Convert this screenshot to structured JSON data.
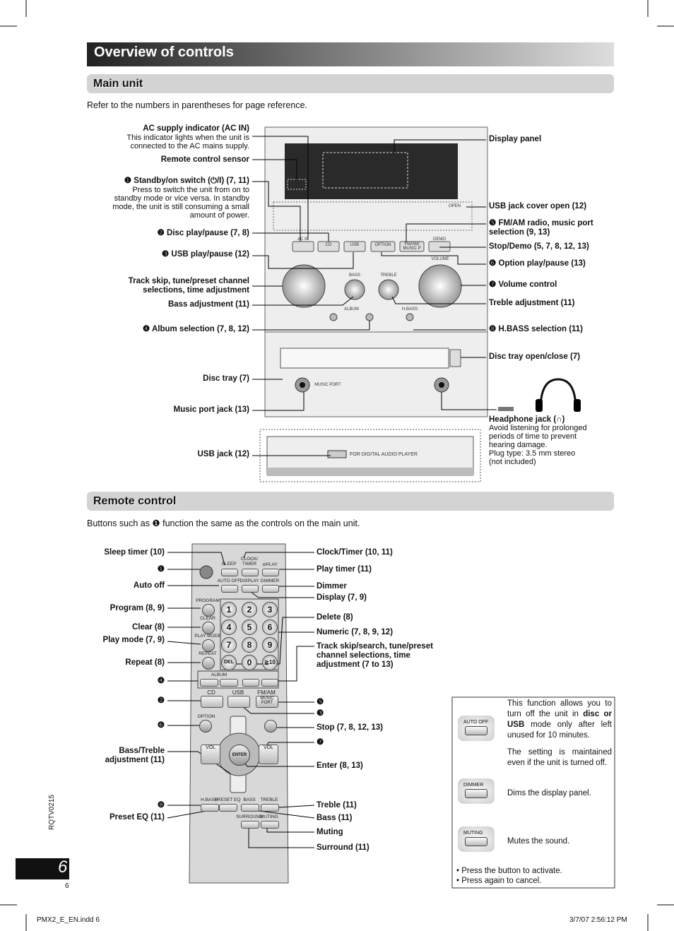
{
  "header": {
    "title": "Overview of controls"
  },
  "main_unit": {
    "heading": "Main unit",
    "intro": "Refer to the numbers in parentheses for page reference.",
    "left_labels": [
      "AC supply indicator (AC IN)",
      "This indicator lights when the unit is connected to the AC mains supply.",
      "Remote control sensor",
      "❶ Standby/on switch (⏻/I) (7, 11)",
      "Press to switch the unit from on to standby mode or vice versa. In standby mode, the unit is still consuming a small amount of power.",
      "❷ Disc play/pause (7, 8)",
      "❸ USB play/pause (12)",
      "Track skip, tune/preset channel selections, time adjustment",
      "Bass adjustment (11)",
      "❹ Album selection (7, 8, 12)",
      "Disc tray (7)",
      "Music port jack (13)",
      "USB jack (12)"
    ],
    "right_labels": [
      "Display panel",
      "USB jack cover open (12)",
      "❺ FM/AM radio, music port selection (9, 13)",
      "Stop/Demo (5, 7, 8, 12, 13)",
      "❻ Option play/pause (13)",
      "❼ Volume control",
      "Treble adjustment (11)",
      "❽ H.BASS selection (11)",
      "Disc tray open/close (7)",
      "Headphone jack (∩)",
      "Avoid listening for prolonged periods of time to prevent hearing damage.",
      "Plug type: 3.5 mm stereo (not included)"
    ],
    "device_labels": [
      "AC IN",
      "OPEN",
      "CD",
      "USB",
      "OPTION",
      "FM/AM/ MUSIC P",
      "DEMO",
      "BASS",
      "TREBLE",
      "VOLUME",
      "ALBUM",
      "H.BASS",
      "MUSIC PORT",
      "FOR DIGITAL AUDIO PLAYER"
    ]
  },
  "remote": {
    "heading": "Remote control",
    "intro": "Buttons such as ❶ function the same as the controls on the main unit.",
    "left_labels": [
      "Sleep timer (10)",
      "❶",
      "Auto off",
      "Program (8, 9)",
      "Clear (8)",
      "Play mode (7, 9)",
      "Repeat (8)",
      "❹",
      "❷",
      "❻",
      "Bass/Treble adjustment (11)",
      "❽",
      "Preset EQ (11)"
    ],
    "right_labels": [
      "Clock/Timer (10, 11)",
      "Play timer (11)",
      "Dimmer",
      "Display (7, 9)",
      "Delete (8)",
      "Numeric (7, 8, 9, 12)",
      "Track skip/search, tune/preset channel selections, time adjustment (7 to 13)",
      "❺",
      "❸",
      "Stop (7, 8, 12, 13)",
      "❼",
      "Enter (8, 13)",
      "Treble (11)",
      "Bass (11)",
      "Muting",
      "Surround (11)"
    ],
    "button_labels": [
      "SLEEP",
      "CLOCK/ TIMER",
      "⊘PLAY",
      "AUTO OFF",
      "DISPLAY",
      "DIMMER",
      "PROGRAM",
      "CLEAR",
      "PLAY MODE",
      "REPEAT",
      "ALBUM",
      "CD",
      "USB",
      "FM/AM",
      "MUSIC PORT",
      "OPTION",
      "VOL",
      "ENTER",
      "VOL",
      "H.BASS",
      "PRESET EQ",
      "BASS",
      "TREBLE",
      "SURROUND",
      "MUTING"
    ],
    "keys": [
      "1",
      "2",
      "3",
      "4",
      "5",
      "6",
      "7",
      "8",
      "9",
      "DEL",
      "0",
      "≧10"
    ]
  },
  "info_box": {
    "items": [
      {
        "button": "AUTO OFF",
        "text_start": "This function allows you to turn off the unit in ",
        "text_bold": "disc or USB",
        "text_end": " mode only after left unused for 10 minutes.",
        "note": "The setting is maintained even if the unit is turned off."
      },
      {
        "button": "DIMMER",
        "text": "Dims the display panel."
      },
      {
        "button": "MUTING",
        "text": "Mutes the sound."
      }
    ],
    "bullets": [
      "Press the button to activate.",
      "Press again to cancel."
    ]
  },
  "footer": {
    "side_code": "RQTV0215",
    "page_number": "6",
    "page_small": "6",
    "file": "PMX2_E_EN.indd 6",
    "timestamp": "3/7/07 2:56:12 PM"
  }
}
